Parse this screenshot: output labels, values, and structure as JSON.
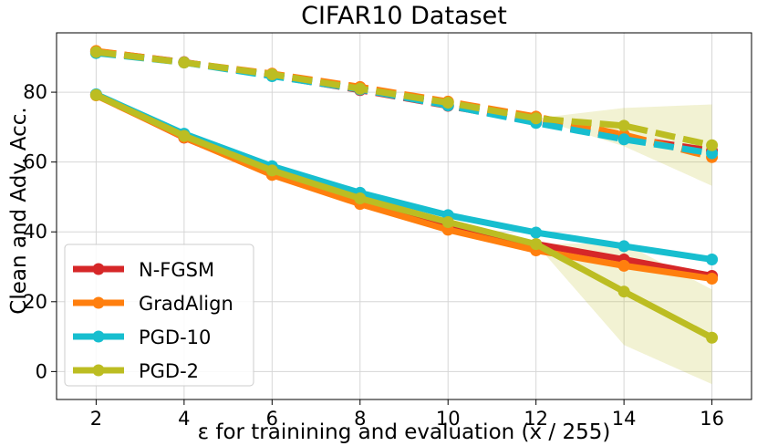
{
  "chart_data": {
    "type": "line",
    "title": "CIFAR10 Dataset",
    "xlabel": "ε for trainining and evaluation (x / 255)",
    "ylabel": "Clean and Adv. Acc.",
    "x": [
      2,
      4,
      6,
      8,
      10,
      12,
      14,
      16
    ],
    "xticks": [
      "2",
      "4",
      "6",
      "8",
      "10",
      "12",
      "14",
      "16"
    ],
    "yticks": [
      "0",
      "20",
      "40",
      "60",
      "80"
    ],
    "xlim": [
      1.1,
      16.9
    ],
    "ylim": [
      -8,
      97
    ],
    "grid": true,
    "legend_position": "lower-left",
    "series": [
      {
        "name": "N-FGSM",
        "color": "#d62728",
        "clean": [
          91.7,
          88.6,
          84.8,
          80.6,
          76.1,
          71.5,
          67.0,
          63.2
        ],
        "robust": [
          79.3,
          67.0,
          56.8,
          48.1,
          41.6,
          36.5,
          32.1,
          27.4
        ]
      },
      {
        "name": "GradAlign",
        "color": "#ff7f0e",
        "clean": [
          91.8,
          88.5,
          85.3,
          81.5,
          77.3,
          73.0,
          67.8,
          61.4
        ],
        "robust": [
          79.1,
          67.1,
          56.3,
          48.0,
          40.6,
          34.7,
          30.3,
          26.6
        ]
      },
      {
        "name": "PGD-10",
        "color": "#17becf",
        "clean": [
          91.2,
          88.5,
          84.6,
          80.8,
          76.2,
          71.2,
          66.5,
          62.5
        ],
        "robust": [
          79.4,
          68.1,
          58.8,
          51.2,
          44.8,
          39.8,
          35.9,
          32.1
        ]
      },
      {
        "name": "PGD-2",
        "color": "#bcbd22",
        "clean": [
          91.5,
          88.5,
          85.1,
          81.0,
          77.0,
          72.5,
          70.4,
          64.8
        ],
        "robust": [
          79.2,
          67.5,
          57.6,
          49.6,
          42.8,
          36.5,
          22.9,
          9.7
        ],
        "clean_band": [
          [
            91.5,
            91.5
          ],
          [
            88.5,
            88.5
          ],
          [
            85.1,
            85.1
          ],
          [
            81.0,
            81.0
          ],
          [
            77.0,
            77.0
          ],
          [
            72.5,
            72.5
          ],
          [
            64.5,
            75.5
          ],
          [
            53.2,
            76.5
          ]
        ],
        "robust_band": [
          [
            79.2,
            79.2
          ],
          [
            67.5,
            67.5
          ],
          [
            57.6,
            57.6
          ],
          [
            49.6,
            49.6
          ],
          [
            42.8,
            42.8
          ],
          [
            36.5,
            36.5
          ],
          [
            7.6,
            36.8
          ],
          [
            -3.6,
            23.5
          ]
        ]
      }
    ]
  }
}
